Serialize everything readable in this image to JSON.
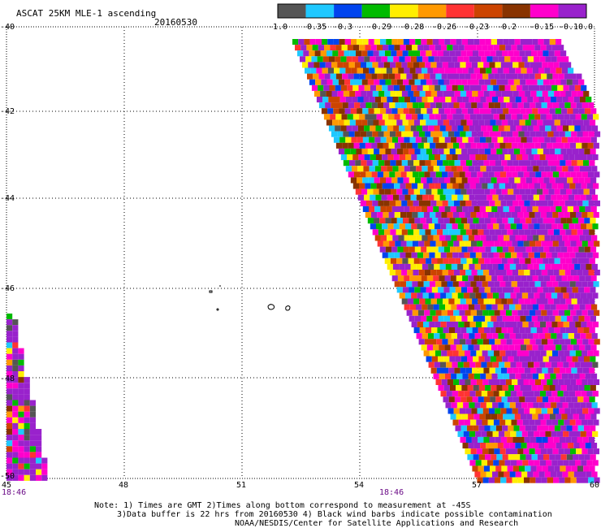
{
  "header": {
    "title": "ASCAT 25KM MLE-1 ascending",
    "date": "20160530"
  },
  "legend": {
    "labels": [
      "-1.0",
      "-0.35",
      "-0.3",
      "-0.29",
      "-0.28",
      "-0.26",
      "-0.23",
      "-0.2",
      "-0.15",
      "-0.1",
      "0.0"
    ],
    "colors": [
      "#555555",
      "#1fc8ff",
      "#0044ee",
      "#00bb00",
      "#ffee00",
      "#ff9900",
      "#ff3333",
      "#cc4400",
      "#883300",
      "#ff00cc",
      "#9922cc"
    ]
  },
  "axes": {
    "x_ticks": [
      "45",
      "48",
      "51",
      "54",
      "57",
      "60"
    ],
    "y_ticks": [
      "-40",
      "-42",
      "-44",
      "-46",
      "-48",
      "-50"
    ]
  },
  "time_labels": [
    "18:46",
    "18:46"
  ],
  "notes": [
    "Note: 1) Times are GMT 2)Times along bottom correspond to measurement at -45S",
    "3)Data buffer is 22 hrs from 20160530 4) Black wind barbs indicate possible contamination",
    "NOAA/NESDIS/Center for Satellite Applications and Research"
  ],
  "colors": {
    "background": "#ffffff",
    "grid": "#000000",
    "time_label": "#6a0a86"
  }
}
